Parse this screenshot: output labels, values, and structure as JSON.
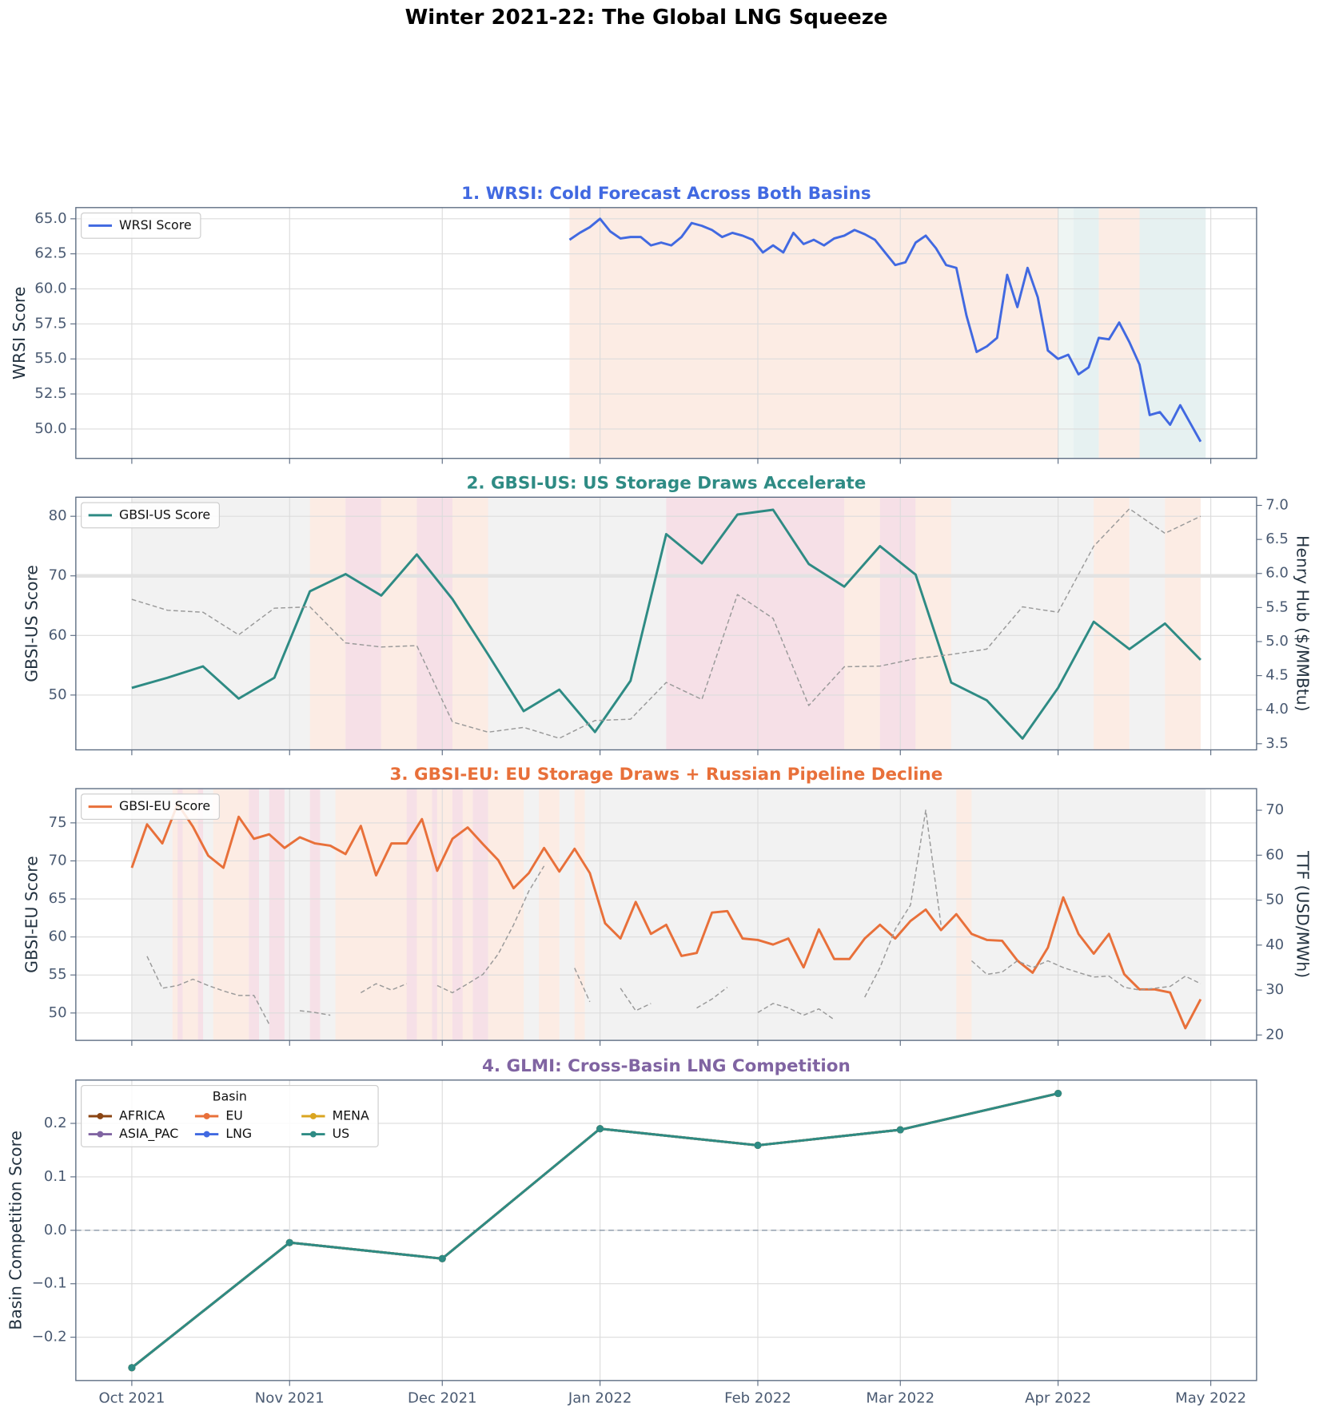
{
  "title": "Winter 2021-22: The Global LNG Squeeze",
  "chart_data": [
    {
      "type": "line",
      "title": "1. WRSI: Cold Forecast Across Both Basins",
      "title_color": "#4169e1",
      "ylabel": "WRSI Score",
      "grid": true,
      "legend": "upper left",
      "xlim": [
        "2021-09-20",
        "2022-05-10"
      ],
      "ylim": [
        47.9,
        65.8
      ],
      "yticks": [
        {
          "value": 50,
          "label": "50.0"
        },
        52.5,
        {
          "value": 55,
          "label": "55.0"
        },
        57.5,
        {
          "value": 60,
          "label": "60.0"
        },
        62.5,
        {
          "value": 65,
          "label": "65.0"
        }
      ],
      "spans": [
        {
          "start": "2021-12-26",
          "end": "2022-04-01",
          "color": "#fcece4"
        },
        {
          "start": "2022-04-01",
          "end": "2022-04-04",
          "color": "#eef5f3"
        },
        {
          "start": "2022-04-04",
          "end": "2022-04-09",
          "color": "#e6f1f1"
        },
        {
          "start": "2022-04-09",
          "end": "2022-04-17",
          "color": "#fcece4"
        },
        {
          "start": "2022-04-17",
          "end": "2022-04-30",
          "color": "#e6f1f1"
        }
      ],
      "x": [
        "2021-12-26",
        "2021-12-28",
        "2021-12-30",
        "2022-01-01",
        "2022-01-03",
        "2022-01-05",
        "2022-01-07",
        "2022-01-09",
        "2022-01-11",
        "2022-01-13",
        "2022-01-15",
        "2022-01-17",
        "2022-01-19",
        "2022-01-21",
        "2022-01-23",
        "2022-01-25",
        "2022-01-27",
        "2022-01-29",
        "2022-01-31",
        "2022-02-02",
        "2022-02-04",
        "2022-02-06",
        "2022-02-08",
        "2022-02-10",
        "2022-02-12",
        "2022-02-14",
        "2022-02-16",
        "2022-02-18",
        "2022-02-20",
        "2022-02-22",
        "2022-02-24",
        "2022-02-26",
        "2022-02-28",
        "2022-03-02",
        "2022-03-04",
        "2022-03-06",
        "2022-03-08",
        "2022-03-10",
        "2022-03-12",
        "2022-03-14",
        "2022-03-16",
        "2022-03-18",
        "2022-03-20",
        "2022-03-22",
        "2022-03-24",
        "2022-03-26",
        "2022-03-28",
        "2022-03-30",
        "2022-04-01",
        "2022-04-03",
        "2022-04-05",
        "2022-04-07",
        "2022-04-09",
        "2022-04-11",
        "2022-04-13",
        "2022-04-15",
        "2022-04-17",
        "2022-04-19",
        "2022-04-21",
        "2022-04-23",
        "2022-04-25",
        "2022-04-27",
        "2022-04-29"
      ],
      "series": [
        {
          "name": "WRSI Score",
          "color": "#4169e1",
          "values": [
            63.5,
            64.0,
            64.4,
            65.0,
            64.1,
            63.6,
            63.7,
            63.7,
            63.1,
            63.3,
            63.1,
            63.7,
            64.7,
            64.5,
            64.2,
            63.7,
            64.0,
            63.8,
            63.5,
            62.6,
            63.1,
            62.6,
            64.0,
            63.2,
            63.5,
            63.1,
            63.6,
            63.8,
            64.2,
            63.9,
            63.5,
            62.6,
            61.7,
            61.9,
            63.3,
            63.8,
            62.9,
            61.7,
            61.5,
            58.1,
            55.5,
            55.9,
            56.5,
            61.0,
            58.7,
            61.5,
            59.4,
            55.6,
            55.0,
            55.3,
            53.9,
            54.4,
            56.5,
            56.4,
            57.6,
            56.2,
            54.6,
            51.0,
            51.2,
            50.3,
            51.7,
            50.4,
            49.1
          ]
        }
      ]
    },
    {
      "type": "line",
      "title": "2. GBSI-US: US Storage Draws Accelerate",
      "title_color": "#2e8b84",
      "ylabel": "GBSI-US Score",
      "y2label": "Henry Hub ($/MMBtu)",
      "grid": true,
      "legend": "upper left",
      "xlim": [
        "2021-09-20",
        "2022-05-10"
      ],
      "ylim": [
        40.8,
        83.2
      ],
      "yticks": [
        50,
        60,
        70,
        80
      ],
      "y2lim": [
        3.41,
        7.12
      ],
      "y2ticks": [
        3.5,
        {
          "value": 4,
          "label": "4.0"
        },
        4.5,
        {
          "value": 5,
          "label": "5.0"
        },
        5.5,
        {
          "value": 6,
          "label": "6.0"
        },
        6.5,
        {
          "value": 7,
          "label": "7.0"
        }
      ],
      "hline": {
        "value": 70,
        "color": "#e2e2e2",
        "width": 4
      },
      "spans": [
        {
          "start": "2021-10-01",
          "end": "2022-04-29",
          "color": "#f2f2f2"
        },
        {
          "start": "2021-11-05",
          "end": "2021-11-12",
          "color": "#fcece4"
        },
        {
          "start": "2021-11-12",
          "end": "2021-11-19",
          "color": "#f6e0e7"
        },
        {
          "start": "2021-11-19",
          "end": "2021-11-26",
          "color": "#fcece4"
        },
        {
          "start": "2021-11-26",
          "end": "2021-12-03",
          "color": "#f6e0e7"
        },
        {
          "start": "2021-12-03",
          "end": "2021-12-10",
          "color": "#fcece4"
        },
        {
          "start": "2022-01-14",
          "end": "2022-02-18",
          "color": "#f6e0e7"
        },
        {
          "start": "2022-02-18",
          "end": "2022-02-25",
          "color": "#fcece4"
        },
        {
          "start": "2022-02-25",
          "end": "2022-03-04",
          "color": "#f6e0e7"
        },
        {
          "start": "2022-03-04",
          "end": "2022-03-11",
          "color": "#fcece4"
        },
        {
          "start": "2022-04-08",
          "end": "2022-04-15",
          "color": "#fcece4"
        },
        {
          "start": "2022-04-22",
          "end": "2022-04-29",
          "color": "#fcece4"
        }
      ],
      "x": [
        "2021-10-01",
        "2021-10-08",
        "2021-10-15",
        "2021-10-22",
        "2021-10-29",
        "2021-11-05",
        "2021-11-12",
        "2021-11-19",
        "2021-11-26",
        "2021-12-03",
        "2021-12-10",
        "2021-12-17",
        "2021-12-24",
        "2021-12-31",
        "2022-01-07",
        "2022-01-14",
        "2022-01-21",
        "2022-01-28",
        "2022-02-04",
        "2022-02-11",
        "2022-02-18",
        "2022-02-25",
        "2022-03-04",
        "2022-03-11",
        "2022-03-18",
        "2022-03-25",
        "2022-04-01",
        "2022-04-08",
        "2022-04-15",
        "2022-04-22",
        "2022-04-29"
      ],
      "series": [
        {
          "name": "GBSI-US Score",
          "color": "#2e8b84",
          "values": [
            51.2,
            52.9,
            54.8,
            49.4,
            52.9,
            67.4,
            70.3,
            66.7,
            73.6,
            66.1,
            56.8,
            47.3,
            50.9,
            43.8,
            52.4,
            77.0,
            72.1,
            80.3,
            81.1,
            72.0,
            68.2,
            75.0,
            70.2,
            52.1,
            49.1,
            42.7,
            51.2,
            62.3,
            57.7,
            62.0,
            55.9
          ]
        },
        {
          "color": "#9a9a9a",
          "axis": "y2",
          "linestyle": "dashed",
          "values": [
            5.62,
            5.46,
            5.43,
            5.1,
            5.49,
            5.51,
            4.98,
            4.92,
            4.94,
            3.82,
            3.67,
            3.74,
            3.58,
            3.84,
            3.86,
            4.4,
            4.15,
            5.69,
            5.34,
            4.06,
            4.63,
            4.64,
            4.75,
            4.81,
            4.89,
            5.51,
            5.43,
            6.4,
            6.95,
            6.59,
            6.84
          ]
        }
      ]
    },
    {
      "type": "line",
      "title": "3. GBSI-EU: EU Storage Draws + Russian Pipeline Decline",
      "title_color": "#e8703a",
      "ylabel": "GBSI-EU Score",
      "y2label": "TTF (USD/MWh)",
      "grid": true,
      "legend": "upper left",
      "xlim": [
        "2021-09-20",
        "2022-05-10"
      ],
      "ylim": [
        46.4,
        79.5
      ],
      "yticks": [
        50,
        55,
        60,
        65,
        70,
        75
      ],
      "y2lim": [
        18.8,
        74.8
      ],
      "y2ticks": [
        20,
        30,
        40,
        50,
        60,
        70
      ],
      "spans": [
        {
          "start": "2021-10-01",
          "end": "2022-04-30",
          "color": "#f2f2f2"
        },
        {
          "start": "2021-10-09",
          "end": "2021-10-15",
          "color": "#fcece4"
        },
        {
          "start": "2021-10-10",
          "end": "2021-10-11",
          "color": "#f6e0e7"
        },
        {
          "start": "2021-10-14",
          "end": "2021-10-15",
          "color": "#f6e0e7"
        },
        {
          "start": "2021-10-17",
          "end": "2021-10-24",
          "color": "#fcece4"
        },
        {
          "start": "2021-10-24",
          "end": "2021-10-26",
          "color": "#f6e0e7"
        },
        {
          "start": "2021-10-28",
          "end": "2021-10-31",
          "color": "#f6e0e7"
        },
        {
          "start": "2021-11-05",
          "end": "2021-11-07",
          "color": "#f6e0e7"
        },
        {
          "start": "2021-11-10",
          "end": "2021-12-17",
          "color": "#fcece4"
        },
        {
          "start": "2021-11-24",
          "end": "2021-11-26",
          "color": "#f6e0e7"
        },
        {
          "start": "2021-11-29",
          "end": "2021-11-30",
          "color": "#f6e0e7"
        },
        {
          "start": "2021-12-03",
          "end": "2021-12-05",
          "color": "#f6e0e7"
        },
        {
          "start": "2021-12-07",
          "end": "2021-12-10",
          "color": "#f6e0e7"
        },
        {
          "start": "2021-12-20",
          "end": "2021-12-24",
          "color": "#fcece4"
        },
        {
          "start": "2021-12-27",
          "end": "2021-12-29",
          "color": "#fcece4"
        },
        {
          "start": "2022-03-12",
          "end": "2022-03-15",
          "color": "#fcece4"
        }
      ],
      "x": [
        "2021-10-01",
        "2021-10-04",
        "2021-10-07",
        "2021-10-10",
        "2021-10-13",
        "2021-10-16",
        "2021-10-19",
        "2021-10-22",
        "2021-10-25",
        "2021-10-28",
        "2021-10-31",
        "2021-11-03",
        "2021-11-06",
        "2021-11-09",
        "2021-11-12",
        "2021-11-15",
        "2021-11-18",
        "2021-11-21",
        "2021-11-24",
        "2021-11-27",
        "2021-11-30",
        "2021-12-03",
        "2021-12-06",
        "2021-12-09",
        "2021-12-12",
        "2021-12-15",
        "2021-12-18",
        "2021-12-21",
        "2021-12-24",
        "2021-12-27",
        "2021-12-30",
        "2022-01-02",
        "2022-01-05",
        "2022-01-08",
        "2022-01-11",
        "2022-01-14",
        "2022-01-17",
        "2022-01-20",
        "2022-01-23",
        "2022-01-26",
        "2022-01-29",
        "2022-02-01",
        "2022-02-04",
        "2022-02-07",
        "2022-02-10",
        "2022-02-13",
        "2022-02-16",
        "2022-02-19",
        "2022-02-22",
        "2022-02-25",
        "2022-02-28",
        "2022-03-03",
        "2022-03-06",
        "2022-03-09",
        "2022-03-12",
        "2022-03-15",
        "2022-03-18",
        "2022-03-21",
        "2022-03-24",
        "2022-03-27",
        "2022-03-30",
        "2022-04-02",
        "2022-04-05",
        "2022-04-08",
        "2022-04-11",
        "2022-04-14",
        "2022-04-17",
        "2022-04-20",
        "2022-04-23",
        "2022-04-26",
        "2022-04-29"
      ],
      "series": [
        {
          "name": "GBSI-EU Score",
          "color": "#e8703a",
          "values": [
            69.1,
            74.8,
            72.3,
            77.5,
            74.5,
            70.7,
            69.1,
            75.8,
            72.9,
            73.5,
            71.7,
            73.1,
            72.3,
            72.0,
            70.9,
            74.6,
            68.1,
            72.3,
            72.3,
            75.5,
            68.7,
            72.9,
            74.4,
            72.2,
            70.1,
            66.4,
            68.4,
            71.7,
            68.6,
            71.6,
            68.4,
            61.8,
            59.8,
            64.6,
            60.4,
            61.6,
            57.5,
            57.9,
            63.2,
            63.4,
            59.8,
            59.6,
            59.0,
            59.8,
            56.0,
            61.0,
            57.1,
            57.1,
            59.8,
            61.6,
            59.8,
            62.1,
            63.6,
            60.9,
            63.0,
            60.4,
            59.6,
            59.5,
            56.9,
            55.3,
            58.6,
            65.2,
            60.4,
            57.8,
            60.4,
            55.1,
            53.1,
            53.1,
            52.7,
            48.0,
            51.8
          ]
        },
        {
          "color": "#9a9a9a",
          "axis": "y2",
          "linestyle": "dashed",
          "values": [
            null,
            37.5,
            30.4,
            31.0,
            32.4,
            31.0,
            29.8,
            28.8,
            28.8,
            22.4,
            null,
            25.4,
            25.0,
            24.4,
            null,
            29.4,
            31.4,
            30.0,
            31.4,
            null,
            31.0,
            29.4,
            31.4,
            33.5,
            38.0,
            44.5,
            52.0,
            57.6,
            null,
            34.9,
            27.4,
            null,
            30.4,
            25.4,
            27.0,
            null,
            null,
            26.0,
            28.0,
            30.6,
            null,
            25.0,
            27.0,
            26.0,
            24.4,
            25.8,
            23.4,
            null,
            28.4,
            35.0,
            43.5,
            48.9,
            70.0,
            44.5,
            null,
            36.5,
            33.5,
            34.0,
            36.5,
            35.0,
            36.5,
            35.0,
            33.9,
            32.9,
            33.1,
            30.6,
            30.0,
            30.4,
            30.8,
            33.1,
            31.4
          ]
        }
      ]
    },
    {
      "type": "line",
      "title": "4. GLMI: Cross-Basin LNG Competition",
      "title_color": "#8064a2",
      "ylabel": "Basin Competition Score",
      "grid": true,
      "legend": "upper left",
      "legend_title": "Basin",
      "xlim": [
        "2021-09-20",
        "2022-05-10"
      ],
      "ylim": [
        -0.281,
        0.281
      ],
      "yticks": [
        {
          "value": -0.2,
          "label": "−0.2"
        },
        {
          "value": -0.1,
          "label": "−0.1"
        },
        {
          "value": 0,
          "label": "0.0"
        },
        0.1,
        0.2
      ],
      "xticks": [
        {
          "value": "2021-10-01",
          "label": "Oct 2021"
        },
        {
          "value": "2021-11-01",
          "label": "Nov 2021"
        },
        {
          "value": "2021-12-01",
          "label": "Dec 2021"
        },
        {
          "value": "2022-01-01",
          "label": "Jan 2022"
        },
        {
          "value": "2022-02-01",
          "label": "Feb 2022"
        },
        {
          "value": "2022-03-01",
          "label": "Mar 2022"
        },
        {
          "value": "2022-04-01",
          "label": "Apr 2022"
        },
        {
          "value": "2022-05-01",
          "label": "May 2022"
        }
      ],
      "hline": {
        "value": 0,
        "color": "#8a97a8",
        "dashed": true
      },
      "x": [
        "2021-10-01",
        "2021-11-01",
        "2021-12-01",
        "2022-01-01",
        "2022-02-01",
        "2022-03-01",
        "2022-04-01"
      ],
      "series": [
        {
          "name": "AFRICA",
          "color": "#8b4513",
          "marker": true,
          "values": [
            -0.257,
            -0.023,
            -0.053,
            0.19,
            0.159,
            0.188,
            0.256
          ]
        },
        {
          "name": "ASIA_PAC",
          "color": "#8064a2",
          "marker": true,
          "values": [
            -0.257,
            -0.023,
            -0.053,
            0.19,
            0.159,
            0.188,
            0.256
          ]
        },
        {
          "name": "EU",
          "color": "#e8703a",
          "marker": true,
          "values": [
            -0.257,
            -0.023,
            -0.053,
            0.19,
            0.159,
            0.188,
            0.256
          ]
        },
        {
          "name": "LNG",
          "color": "#4169e1",
          "marker": true,
          "values": [
            -0.257,
            -0.023,
            -0.053,
            0.19,
            0.159,
            0.188,
            0.256
          ]
        },
        {
          "name": "MENA",
          "color": "#daa520",
          "marker": true,
          "values": [
            -0.257,
            -0.023,
            -0.053,
            0.19,
            0.159,
            0.188,
            0.256
          ]
        },
        {
          "name": "US",
          "color": "#2e8b84",
          "marker": true,
          "values": [
            -0.257,
            -0.023,
            -0.053,
            0.19,
            0.159,
            0.188,
            0.256
          ]
        }
      ]
    }
  ]
}
